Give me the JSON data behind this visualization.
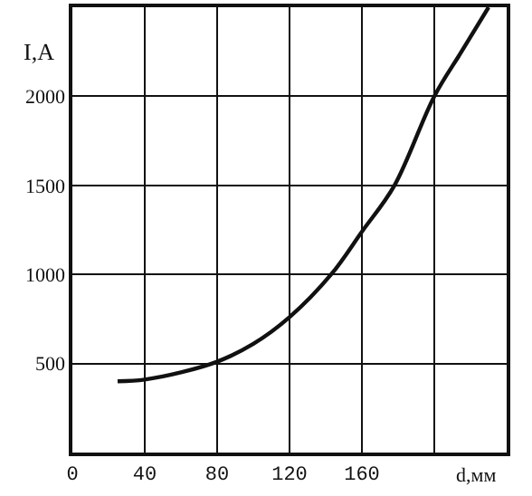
{
  "chart_data": {
    "type": "line",
    "xlabel": "d,мм",
    "ylabel": "I,A",
    "x": [
      25,
      40,
      60,
      80,
      100,
      120,
      143,
      160,
      178,
      200,
      215,
      230
    ],
    "series": [
      {
        "color": "#111111",
        "values": [
          400,
          410,
          450,
          510,
          610,
          760,
          1000,
          1240,
          1500,
          2000,
          2250,
          2500
        ]
      }
    ],
    "xlim": [
      0,
      240
    ],
    "xticks": [
      0,
      40,
      80,
      120,
      160,
      {
        "value": 200,
        "label": null
      }
    ],
    "ylim": [
      0,
      2500
    ],
    "yticks": [
      500,
      1000,
      1500,
      2000
    ],
    "grid": true,
    "marker": "none",
    "line_style": "solid"
  }
}
